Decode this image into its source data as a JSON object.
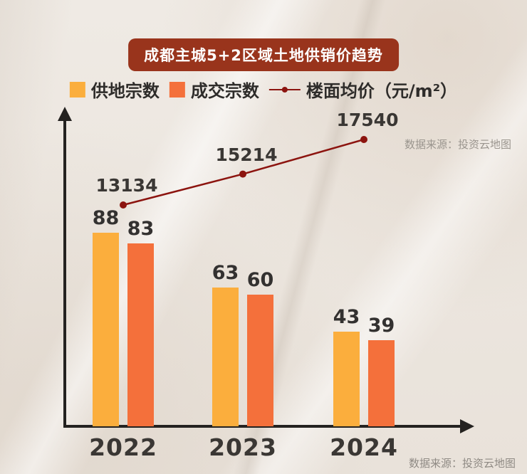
{
  "title": "成都主城5+2区域土地供销价趋势",
  "legend": {
    "supply_label": "供地宗数",
    "deal_label": "成交宗数",
    "price_label": "楼面均价（元/m²）"
  },
  "watermark_top": "数据来源：投资云地图",
  "watermark_bottom": "数据来源：投资云地图",
  "colors": {
    "supply_bar": "#fbae3d",
    "deal_bar": "#f4703b",
    "price_line": "#8c140f",
    "title_badge": "#99341c"
  },
  "chart_data": {
    "type": "bar+line",
    "title": "成都主城5+2区域土地供销价趋势",
    "categories": [
      "2022",
      "2023",
      "2024"
    ],
    "series": [
      {
        "name": "供地宗数",
        "type": "bar",
        "color": "#fbae3d",
        "values": [
          88,
          63,
          43
        ]
      },
      {
        "name": "成交宗数",
        "type": "bar",
        "color": "#f4703b",
        "values": [
          83,
          60,
          39
        ]
      },
      {
        "name": "楼面均价（元/m²）",
        "type": "line",
        "color": "#8c140f",
        "values": [
          13134,
          15214,
          17540
        ]
      }
    ],
    "ylim_bars": [
      0,
      95
    ],
    "line_value_range": [
      13134,
      17540
    ],
    "legend_position": "top",
    "grid": false,
    "source_note": "数据来源：投资云地图"
  }
}
